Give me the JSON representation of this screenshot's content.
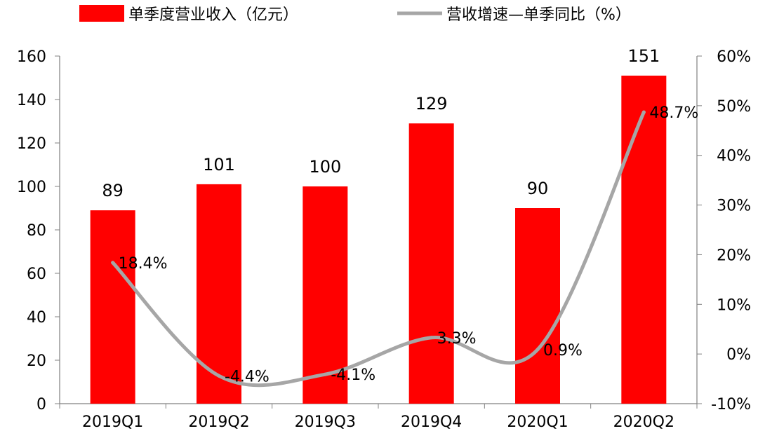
{
  "chart_data": {
    "type": "bar",
    "categories": [
      "2019Q1",
      "2019Q2",
      "2019Q3",
      "2019Q4",
      "2020Q1",
      "2020Q2"
    ],
    "series": [
      {
        "name": "单季度营业收入（亿元）",
        "type": "bar",
        "axis": "left",
        "color": "#ff0000",
        "values": [
          89,
          101,
          100,
          129,
          90,
          151
        ],
        "labels": [
          "89",
          "101",
          "100",
          "129",
          "90",
          "151"
        ]
      },
      {
        "name": "营收增速—单季同比（%）",
        "type": "line",
        "axis": "right",
        "color": "#a6a6a6",
        "values": [
          18.4,
          -4.4,
          -4.1,
          3.3,
          0.9,
          48.7
        ],
        "labels": [
          "18.4%",
          "-4.4%",
          "-4.1%",
          "3.3%",
          "0.9%",
          "48.7%"
        ]
      }
    ],
    "left_axis": {
      "min": 0,
      "max": 160,
      "step": 20,
      "ticks": [
        "0",
        "20",
        "40",
        "60",
        "80",
        "100",
        "120",
        "140",
        "160"
      ]
    },
    "right_axis": {
      "min": -10,
      "max": 60,
      "step": 10,
      "ticks": [
        "-10%",
        "0%",
        "10%",
        "20%",
        "30%",
        "40%",
        "50%",
        "60%"
      ]
    },
    "legend_position": "top",
    "grid": false
  }
}
